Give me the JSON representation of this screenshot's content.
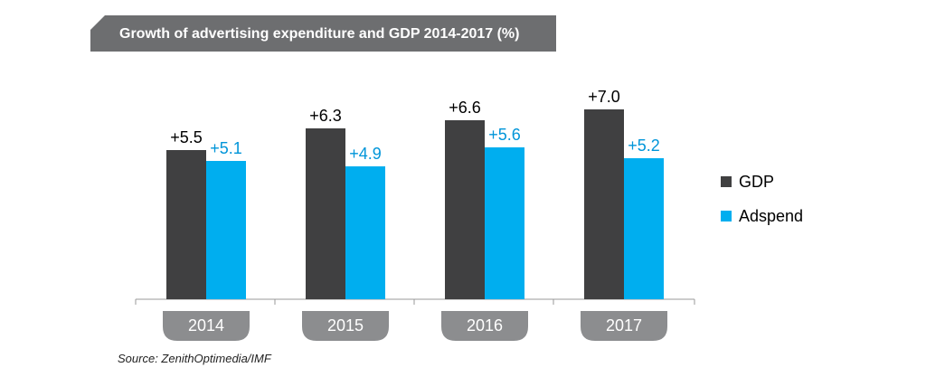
{
  "title": "Growth of advertising expenditure and GDP 2014-2017 (%)",
  "source": "Source: ZenithOptimedia/IMF",
  "colors": {
    "title_banner": "#6d6e70",
    "gdp": "#404041",
    "adspend": "#00aeef",
    "category_tab": "#8c8d8f",
    "axis": "#999999",
    "label_dark": "#000000",
    "label_accent": "#0095d9"
  },
  "chart_data": {
    "type": "bar",
    "title": "Growth of advertising expenditure and GDP 2014-2017 (%)",
    "categories": [
      "2014",
      "2015",
      "2016",
      "2017"
    ],
    "series": [
      {
        "name": "GDP",
        "values": [
          5.5,
          6.3,
          6.6,
          7.0
        ],
        "labels": [
          "+5.5",
          "+6.3",
          "+6.6",
          "+7.0"
        ],
        "color": "#404041"
      },
      {
        "name": "Adspend",
        "values": [
          5.1,
          4.9,
          5.6,
          5.2
        ],
        "labels": [
          "+5.1",
          "+4.9",
          "+5.6",
          "+5.2"
        ],
        "color": "#00aeef"
      }
    ],
    "ylim": [
      0,
      7.5
    ],
    "grid": false,
    "legend": "right"
  }
}
